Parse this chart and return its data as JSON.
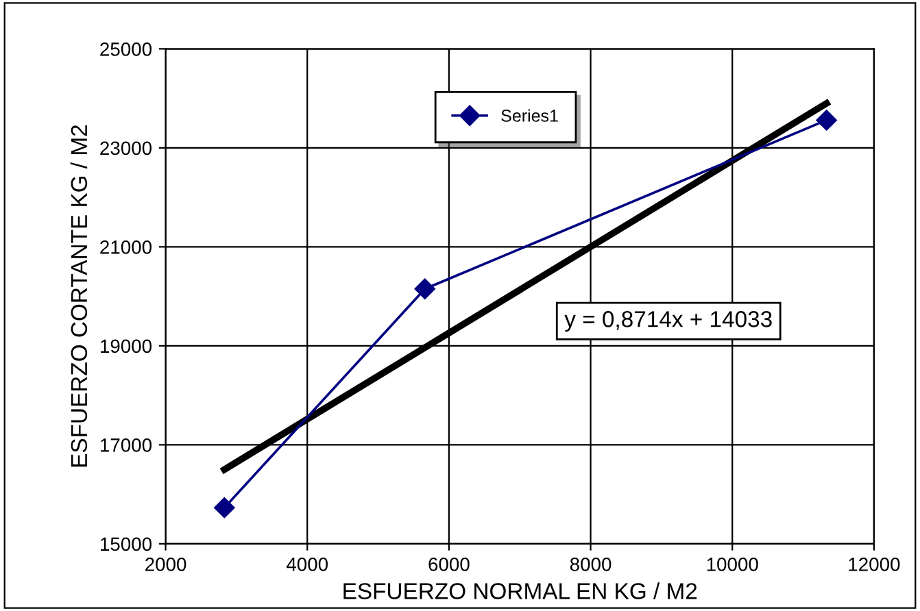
{
  "chart_data": {
    "type": "line",
    "xlabel": "ESFUERZO NORMAL EN KG / M2",
    "ylabel": "ESFUERZO CORTANTE KG / M2",
    "series": [
      {
        "name": "Series1",
        "color": "#000080",
        "x": [
          2830,
          5660,
          11330
        ],
        "values": [
          15730,
          20150,
          23560
        ],
        "marker": "diamond"
      },
      {
        "type": "line",
        "color": "#000000",
        "x": [
          2830,
          11330
        ],
        "values": [
          16500,
          23900
        ],
        "marker": "none"
      }
    ],
    "annotations": [
      "y = 0,8714x + 14033"
    ],
    "xlim": [
      2000,
      12000
    ],
    "xticks": [
      2000,
      4000,
      6000,
      8000,
      10000,
      12000
    ],
    "ylim": [
      15000,
      25000
    ],
    "yticks": [
      15000,
      17000,
      19000,
      21000,
      23000,
      25000
    ],
    "grid": true,
    "legend": "top"
  }
}
